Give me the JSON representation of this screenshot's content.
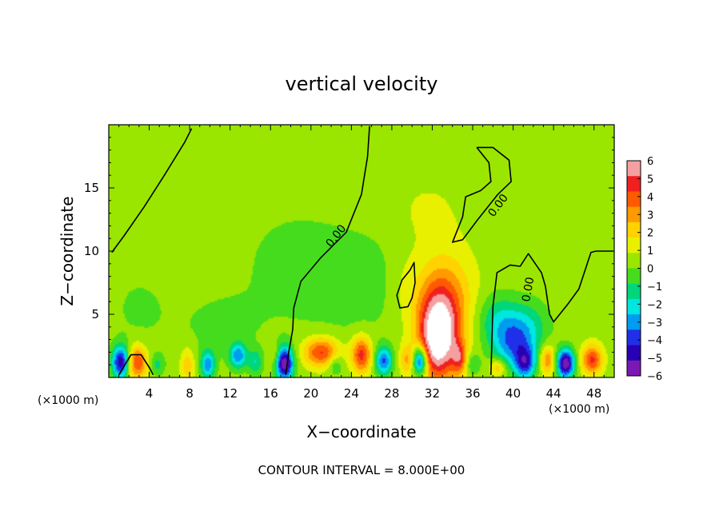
{
  "chart_data": {
    "type": "heatmap",
    "title": "vertical velocity",
    "xlabel": "X−coordinate",
    "ylabel": "Z−coordinate",
    "x_unit_left": "(×1000 m)",
    "x_unit_right": "(×1000 m)",
    "xlim": [
      0,
      50
    ],
    "ylim": [
      0,
      20
    ],
    "x_ticks": [
      4,
      8,
      12,
      16,
      20,
      24,
      28,
      32,
      36,
      40,
      44,
      48
    ],
    "y_ticks": [
      5,
      10,
      15
    ],
    "grid": false,
    "colorbar": {
      "ticks": [
        "6",
        "5",
        "4",
        "3",
        "2",
        "1",
        "0",
        "−1",
        "−2",
        "−3",
        "−4",
        "−5",
        "−6"
      ],
      "colors": [
        "#f4a0a0",
        "#f02020",
        "#ff5a00",
        "#ff9a00",
        "#ffd200",
        "#e8f000",
        "#9ae600",
        "#46dc1e",
        "#00d67a",
        "#00e6e0",
        "#009cf0",
        "#2030e8",
        "#2800b4",
        "#7a18b4"
      ]
    },
    "contour_labels": [
      "0.00",
      "0.00",
      "0.00"
    ],
    "blobs": [
      {
        "x": 32.6,
        "z": 3.0,
        "v": 6.5,
        "sx": 1.3,
        "sz": 2.2
      },
      {
        "x": 33.0,
        "z": 6.0,
        "v": 3.2,
        "sx": 2.0,
        "sz": 2.6
      },
      {
        "x": 40.0,
        "z": 2.5,
        "v": -3.0,
        "sx": 1.4,
        "sz": 1.4
      },
      {
        "x": 38.5,
        "z": 4.5,
        "v": -2.0,
        "sx": 1.5,
        "sz": 1.5
      },
      {
        "x": 41.5,
        "z": 4.0,
        "v": -1.8,
        "sx": 1.5,
        "sz": 1.5
      },
      {
        "x": 1.2,
        "z": 1.2,
        "v": -5.5,
        "sx": 0.6,
        "sz": 0.9
      },
      {
        "x": 2.8,
        "z": 1.2,
        "v": 4.0,
        "sx": 0.7,
        "sz": 0.9
      },
      {
        "x": 4.8,
        "z": 1.0,
        "v": -1.5,
        "sx": 0.5,
        "sz": 0.6
      },
      {
        "x": 7.8,
        "z": 1.0,
        "v": 1.8,
        "sx": 0.5,
        "sz": 1.0
      },
      {
        "x": 9.8,
        "z": 1.0,
        "v": -3.5,
        "sx": 0.5,
        "sz": 0.8
      },
      {
        "x": 12.8,
        "z": 1.7,
        "v": -3.5,
        "sx": 0.6,
        "sz": 0.7
      },
      {
        "x": 14.5,
        "z": 1.2,
        "v": -2.0,
        "sx": 0.5,
        "sz": 0.7
      },
      {
        "x": 16.4,
        "z": 1.8,
        "v": 1.2,
        "sx": 0.4,
        "sz": 0.6
      },
      {
        "x": 17.4,
        "z": 1.1,
        "v": -6.5,
        "sx": 0.6,
        "sz": 0.9
      },
      {
        "x": 21.0,
        "z": 2.0,
        "v": 4.0,
        "sx": 1.2,
        "sz": 0.8
      },
      {
        "x": 22.4,
        "z": 1.0,
        "v": -1.5,
        "sx": 0.5,
        "sz": 0.6
      },
      {
        "x": 25.0,
        "z": 1.8,
        "v": 4.2,
        "sx": 0.7,
        "sz": 1.0
      },
      {
        "x": 27.2,
        "z": 1.3,
        "v": -4.0,
        "sx": 0.6,
        "sz": 0.8
      },
      {
        "x": 29.5,
        "z": 1.4,
        "v": 2.0,
        "sx": 0.5,
        "sz": 0.8
      },
      {
        "x": 30.8,
        "z": 1.3,
        "v": -5.5,
        "sx": 0.5,
        "sz": 0.8
      },
      {
        "x": 34.7,
        "z": 1.5,
        "v": 3.0,
        "sx": 0.5,
        "sz": 0.9
      },
      {
        "x": 36.0,
        "z": 1.0,
        "v": -1.6,
        "sx": 0.5,
        "sz": 0.6
      },
      {
        "x": 38.5,
        "z": 0.8,
        "v": 2.2,
        "sx": 0.6,
        "sz": 0.5
      },
      {
        "x": 41.2,
        "z": 1.1,
        "v": -4.0,
        "sx": 0.7,
        "sz": 0.9
      },
      {
        "x": 43.4,
        "z": 1.4,
        "v": 3.0,
        "sx": 0.5,
        "sz": 0.8
      },
      {
        "x": 45.2,
        "z": 1.1,
        "v": -6.5,
        "sx": 0.6,
        "sz": 0.8
      },
      {
        "x": 47.8,
        "z": 1.4,
        "v": 4.0,
        "sx": 0.7,
        "sz": 0.8
      },
      {
        "x": 25.0,
        "z": 7.5,
        "v": -0.9,
        "sx": 4.0,
        "sz": 3.0
      },
      {
        "x": 18.0,
        "z": 9.0,
        "v": -0.7,
        "sx": 4.0,
        "sz": 3.5
      },
      {
        "x": 3.0,
        "z": 5.5,
        "v": -0.6,
        "sx": 2.5,
        "sz": 2.5
      },
      {
        "x": 11.0,
        "z": 4.0,
        "v": -0.7,
        "sx": 3.0,
        "sz": 2.0
      },
      {
        "x": 29.0,
        "z": 7.5,
        "v": 0.6,
        "sx": 1.2,
        "sz": 2.0
      },
      {
        "x": 31.5,
        "z": 13.0,
        "v": 0.5,
        "sx": 2.5,
        "sz": 2.0
      }
    ],
    "zero_contours": [
      {
        "name": "contour-left",
        "points": [
          [
            0.3,
            9.9
          ],
          [
            1.5,
            11.2
          ],
          [
            3.5,
            13.5
          ],
          [
            5.5,
            16.0
          ],
          [
            7.5,
            18.6
          ],
          [
            8.2,
            19.7
          ]
        ]
      },
      {
        "name": "contour-mid",
        "points": [
          [
            25.8,
            19.9
          ],
          [
            25.6,
            17.5
          ],
          [
            25.0,
            14.5
          ],
          [
            23.5,
            11.5
          ],
          [
            21.0,
            9.5
          ],
          [
            19.0,
            7.6
          ],
          [
            18.3,
            5.5
          ],
          [
            18.2,
            3.8
          ],
          [
            17.8,
            2.0
          ],
          [
            17.5,
            0.2
          ]
        ]
      },
      {
        "name": "contour-top-right",
        "points": [
          [
            36.4,
            18.2
          ],
          [
            37.6,
            17.0
          ],
          [
            37.8,
            15.5
          ],
          [
            36.8,
            14.8
          ],
          [
            35.3,
            14.3
          ],
          [
            35.0,
            12.7
          ],
          [
            34.0,
            10.7
          ],
          [
            35.0,
            10.9
          ],
          [
            36.5,
            12.5
          ],
          [
            38.5,
            14.5
          ],
          [
            39.8,
            15.5
          ],
          [
            39.6,
            17.2
          ],
          [
            38.0,
            18.2
          ],
          [
            36.4,
            18.2
          ]
        ]
      },
      {
        "name": "contour-loop",
        "points": [
          [
            29.8,
            8.5
          ],
          [
            30.2,
            9.1
          ],
          [
            30.3,
            7.5
          ],
          [
            30.0,
            6.3
          ],
          [
            29.6,
            5.6
          ],
          [
            28.8,
            5.5
          ],
          [
            28.5,
            6.5
          ],
          [
            29.0,
            7.7
          ],
          [
            29.8,
            8.5
          ]
        ]
      },
      {
        "name": "contour-right",
        "points": [
          [
            37.8,
            0.2
          ],
          [
            38.0,
            5.6
          ],
          [
            38.4,
            8.3
          ],
          [
            39.7,
            8.9
          ],
          [
            40.7,
            8.8
          ],
          [
            41.5,
            9.8
          ],
          [
            42.8,
            8.3
          ],
          [
            43.2,
            7.2
          ],
          [
            43.6,
            5.0
          ],
          [
            44.0,
            4.4
          ],
          [
            45.4,
            5.8
          ],
          [
            46.5,
            7.0
          ],
          [
            47.7,
            9.9
          ],
          [
            48.2,
            10.0
          ],
          [
            49.0,
            10.0
          ],
          [
            49.9,
            10.0
          ]
        ]
      },
      {
        "name": "contour-lower",
        "points": [
          [
            1.0,
            0.2
          ],
          [
            1.6,
            1.0
          ],
          [
            2.2,
            1.8
          ],
          [
            3.2,
            1.8
          ],
          [
            4.0,
            0.8
          ],
          [
            4.4,
            0.2
          ]
        ]
      }
    ]
  },
  "footer_text": "CONTOUR INTERVAL = 8.000E+00"
}
